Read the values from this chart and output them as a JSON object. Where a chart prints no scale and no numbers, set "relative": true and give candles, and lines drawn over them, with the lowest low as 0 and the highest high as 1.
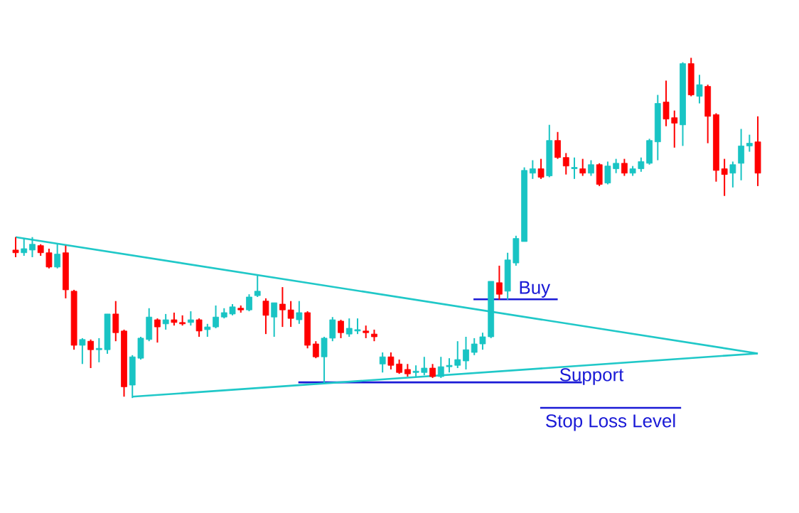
{
  "chart_data": {
    "type": "candlestick",
    "relative": true,
    "categories": [
      null,
      null,
      null,
      null,
      null,
      null,
      null,
      null,
      null,
      null,
      null,
      null,
      null,
      null,
      null,
      null,
      null,
      null,
      null,
      null,
      null,
      null,
      null,
      null,
      null,
      null,
      null,
      null,
      null,
      null,
      null,
      null,
      null,
      null,
      null,
      null,
      null,
      null,
      null,
      null,
      null,
      null,
      null,
      null,
      null,
      null,
      null,
      null,
      null,
      null,
      null,
      null,
      null,
      null,
      null,
      null,
      null,
      null,
      null,
      null,
      null,
      null,
      null,
      null,
      null,
      null,
      null,
      null,
      null,
      null,
      null,
      null,
      null,
      null,
      null,
      null,
      null,
      null,
      null,
      null,
      null,
      null,
      null,
      null,
      null,
      null,
      null,
      null,
      null,
      null
    ],
    "ohlc": [
      [
        0.435,
        0.473,
        0.414,
        0.427
      ],
      [
        0.427,
        0.469,
        0.418,
        0.439
      ],
      [
        0.435,
        0.473,
        0.414,
        0.452
      ],
      [
        0.448,
        0.452,
        0.418,
        0.427
      ],
      [
        0.427,
        0.439,
        0.381,
        0.385
      ],
      [
        0.385,
        0.452,
        0.381,
        0.423
      ],
      [
        0.427,
        0.448,
        0.293,
        0.318
      ],
      [
        0.314,
        0.318,
        0.142,
        0.155
      ],
      [
        0.155,
        0.176,
        0.1,
        0.172
      ],
      [
        0.167,
        0.172,
        0.088,
        0.142
      ],
      [
        0.142,
        0.176,
        0.105,
        0.146
      ],
      [
        0.142,
        0.247,
        0.13,
        0.247
      ],
      [
        0.247,
        0.285,
        0.167,
        0.192
      ],
      [
        0.197,
        0.201,
        0.004,
        0.033
      ],
      [
        0.038,
        0.126,
        0.0,
        0.121
      ],
      [
        0.117,
        0.18,
        0.113,
        0.176
      ],
      [
        0.172,
        0.264,
        0.167,
        0.238
      ],
      [
        0.23,
        0.234,
        0.163,
        0.209
      ],
      [
        0.218,
        0.247,
        0.201,
        0.23
      ],
      [
        0.23,
        0.251,
        0.213,
        0.222
      ],
      [
        0.222,
        0.243,
        0.213,
        0.218
      ],
      [
        0.222,
        0.255,
        0.213,
        0.23
      ],
      [
        0.23,
        0.234,
        0.18,
        0.197
      ],
      [
        0.201,
        0.218,
        0.18,
        0.209
      ],
      [
        0.209,
        0.272,
        0.205,
        0.238
      ],
      [
        0.238,
        0.264,
        0.234,
        0.251
      ],
      [
        0.247,
        0.276,
        0.243,
        0.268
      ],
      [
        0.264,
        0.272,
        0.251,
        0.259
      ],
      [
        0.259,
        0.305,
        0.255,
        0.297
      ],
      [
        0.301,
        0.36,
        0.297,
        0.314
      ],
      [
        0.285,
        0.293,
        0.188,
        0.243
      ],
      [
        0.238,
        0.28,
        0.18,
        0.28
      ],
      [
        0.276,
        0.326,
        0.209,
        0.259
      ],
      [
        0.259,
        0.285,
        0.209,
        0.234
      ],
      [
        0.23,
        0.285,
        0.218,
        0.251
      ],
      [
        0.251,
        0.255,
        0.146,
        0.155
      ],
      [
        0.159,
        0.167,
        0.117,
        0.121
      ],
      [
        0.121,
        0.18,
        0.042,
        0.176
      ],
      [
        0.176,
        0.238,
        0.167,
        0.23
      ],
      [
        0.226,
        0.23,
        0.176,
        0.192
      ],
      [
        0.188,
        0.234,
        0.18,
        0.205
      ],
      [
        0.197,
        0.234,
        0.188,
        0.201
      ],
      [
        0.197,
        0.213,
        0.176,
        0.192
      ],
      [
        0.188,
        0.201,
        0.167,
        0.18
      ],
      [
        0.1,
        0.134,
        0.075,
        0.121
      ],
      [
        0.121,
        0.134,
        0.084,
        0.096
      ],
      [
        0.1,
        0.113,
        0.071,
        0.075
      ],
      [
        0.084,
        0.1,
        0.063,
        0.071
      ],
      [
        0.075,
        0.096,
        0.063,
        0.079
      ],
      [
        0.075,
        0.121,
        0.067,
        0.088
      ],
      [
        0.088,
        0.1,
        0.059,
        0.063
      ],
      [
        0.063,
        0.121,
        0.059,
        0.092
      ],
      [
        0.092,
        0.117,
        0.075,
        0.096
      ],
      [
        0.096,
        0.167,
        0.088,
        0.113
      ],
      [
        0.109,
        0.18,
        0.084,
        0.142
      ],
      [
        0.134,
        0.176,
        0.126,
        0.159
      ],
      [
        0.159,
        0.192,
        0.142,
        0.18
      ],
      [
        0.18,
        0.343,
        0.176,
        0.343
      ],
      [
        0.339,
        0.389,
        0.289,
        0.305
      ],
      [
        0.314,
        0.427,
        0.289,
        0.406
      ],
      [
        0.397,
        0.477,
        0.389,
        0.469
      ],
      [
        0.46,
        0.678,
        0.46,
        0.669
      ],
      [
        0.661,
        0.699,
        0.644,
        0.674
      ],
      [
        0.674,
        0.703,
        0.644,
        0.649
      ],
      [
        0.653,
        0.803,
        0.649,
        0.757
      ],
      [
        0.757,
        0.782,
        0.703,
        0.707
      ],
      [
        0.707,
        0.72,
        0.657,
        0.682
      ],
      [
        0.674,
        0.707,
        0.644,
        0.678
      ],
      [
        0.674,
        0.703,
        0.653,
        0.661
      ],
      [
        0.661,
        0.699,
        0.653,
        0.686
      ],
      [
        0.686,
        0.69,
        0.623,
        0.628
      ],
      [
        0.632,
        0.695,
        0.628,
        0.682
      ],
      [
        0.674,
        0.703,
        0.661,
        0.69
      ],
      [
        0.69,
        0.703,
        0.653,
        0.661
      ],
      [
        0.661,
        0.682,
        0.653,
        0.674
      ],
      [
        0.674,
        0.707,
        0.665,
        0.695
      ],
      [
        0.69,
        0.762,
        0.686,
        0.757
      ],
      [
        0.753,
        0.891,
        0.699,
        0.866
      ],
      [
        0.87,
        0.933,
        0.799,
        0.82
      ],
      [
        0.824,
        0.845,
        0.736,
        0.808
      ],
      [
        0.803,
        0.987,
        0.741,
        0.983
      ],
      [
        0.983,
        1.0,
        0.887,
        0.891
      ],
      [
        0.887,
        0.95,
        0.866,
        0.921
      ],
      [
        0.916,
        0.921,
        0.749,
        0.828
      ],
      [
        0.833,
        0.837,
        0.636,
        0.669
      ],
      [
        0.674,
        0.703,
        0.594,
        0.657
      ],
      [
        0.661,
        0.695,
        0.619,
        0.686
      ],
      [
        0.69,
        0.791,
        0.64,
        0.741
      ],
      [
        0.741,
        0.774,
        0.724,
        0.749
      ],
      [
        0.753,
        0.828,
        0.623,
        0.661
      ]
    ],
    "annotations": [
      "Buy",
      "Support",
      "Stop Loss Level"
    ],
    "series": [
      {
        "type": "line",
        "color": "#20c8c8",
        "values": [
          0.473,
          null,
          null,
          null,
          null,
          null,
          null,
          null,
          null,
          null,
          null,
          null,
          null,
          null,
          null,
          null,
          null,
          null,
          null,
          null,
          null,
          null,
          null,
          null,
          null,
          null,
          null,
          null,
          null,
          null,
          null,
          null,
          null,
          null,
          null,
          null,
          null,
          null,
          null,
          null,
          null,
          null,
          null,
          null,
          null,
          null,
          null,
          null,
          null,
          null,
          null,
          null,
          null,
          null,
          null,
          null,
          null,
          null,
          null,
          null,
          null,
          null,
          null,
          null,
          null,
          null,
          null,
          null,
          null,
          null,
          null,
          null,
          null,
          null,
          null,
          null,
          null,
          null,
          null,
          null,
          null,
          null,
          null,
          null,
          null,
          null,
          null,
          null,
          null,
          0.131
        ]
      },
      {
        "type": "line",
        "color": "#20c8c8",
        "values": [
          null,
          null,
          null,
          null,
          null,
          null,
          null,
          null,
          null,
          null,
          null,
          null,
          null,
          null,
          0.004,
          null,
          null,
          null,
          null,
          null,
          null,
          null,
          null,
          null,
          null,
          null,
          null,
          null,
          null,
          null,
          null,
          null,
          null,
          null,
          null,
          null,
          null,
          null,
          null,
          null,
          null,
          null,
          null,
          null,
          null,
          null,
          null,
          null,
          null,
          null,
          null,
          null,
          null,
          null,
          null,
          null,
          null,
          null,
          null,
          null,
          null,
          null,
          null,
          null,
          null,
          null,
          null,
          null,
          null,
          null,
          null,
          null,
          null,
          null,
          null,
          null,
          null,
          null,
          null,
          null,
          null,
          null,
          null,
          null,
          null,
          null,
          null,
          null,
          null,
          0.131
        ]
      }
    ]
  }
}
